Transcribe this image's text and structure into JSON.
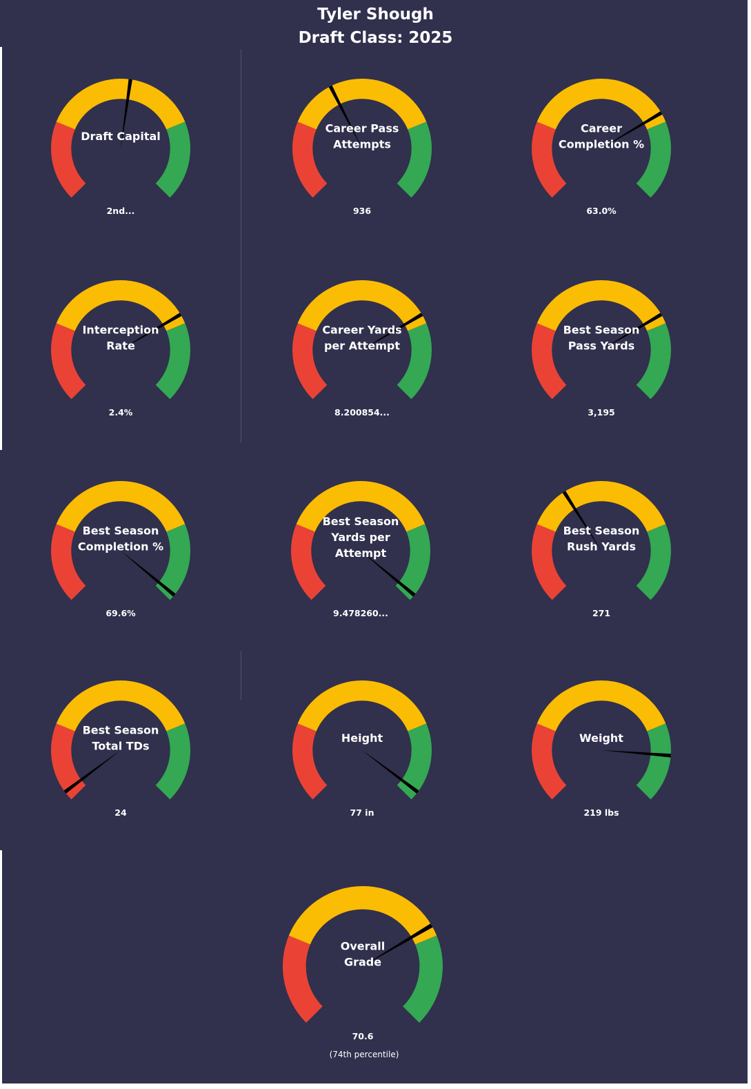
{
  "header": {
    "player": "Tyler Shough",
    "draft_class": "Draft Class: 2025"
  },
  "colors": {
    "background": "#31304d",
    "red": "#ea4335",
    "yellow": "#fbbc04",
    "green": "#34a853",
    "needle": "#000000",
    "text": "#ffffff"
  },
  "chart_data": [
    {
      "type": "gauge",
      "label": [
        "Draft Capital"
      ],
      "value_text": "2nd...",
      "needle_pct": 0.53,
      "bands": [
        0.25,
        0.75
      ]
    },
    {
      "type": "gauge",
      "label": [
        "Career Pass",
        "Attempts"
      ],
      "value_text": "936",
      "needle_pct": 0.4,
      "bands": [
        0.25,
        0.75
      ]
    },
    {
      "type": "gauge",
      "label": [
        "Career",
        "Completion %"
      ],
      "value_text": "63.0%",
      "needle_pct": 0.72,
      "bands": [
        0.25,
        0.75
      ]
    },
    {
      "type": "gauge",
      "label": [
        "Interception",
        "Rate"
      ],
      "value_text": "2.4%",
      "needle_pct": 0.72,
      "bands": [
        0.25,
        0.75
      ]
    },
    {
      "type": "gauge",
      "label": [
        "Career Yards",
        "per Attempt"
      ],
      "value_text": "8.200854...",
      "needle_pct": 0.72,
      "bands": [
        0.25,
        0.75
      ]
    },
    {
      "type": "gauge",
      "label": [
        "Best Season",
        "Pass Yards"
      ],
      "value_text": "3,195",
      "needle_pct": 0.72,
      "bands": [
        0.25,
        0.75
      ]
    },
    {
      "type": "gauge",
      "label": [
        "Best Season",
        "Completion %"
      ],
      "value_text": "69.6%",
      "needle_pct": 0.98,
      "bands": [
        0.25,
        0.75
      ]
    },
    {
      "type": "gauge",
      "label": [
        "Best Season",
        "Yards per",
        "Attempt"
      ],
      "value_text": "9.478260...",
      "needle_pct": 0.98,
      "bands": [
        0.25,
        0.75
      ]
    },
    {
      "type": "gauge",
      "label": [
        "Best Season",
        "Rush Yards"
      ],
      "value_text": "271",
      "needle_pct": 0.38,
      "bands": [
        0.25,
        0.75
      ]
    },
    {
      "type": "gauge",
      "label": [
        "Best Season",
        "Total TDs"
      ],
      "value_text": "24",
      "needle_pct": 0.03,
      "bands": [
        0.25,
        0.75
      ]
    },
    {
      "type": "gauge",
      "label": [
        "Height"
      ],
      "value_text": "77 in",
      "needle_pct": 0.97,
      "bands": [
        0.25,
        0.75
      ]
    },
    {
      "type": "gauge",
      "label": [
        "Weight"
      ],
      "value_text": "219 lbs",
      "needle_pct": 0.85,
      "bands": [
        0.25,
        0.75
      ]
    },
    {
      "type": "gauge",
      "label": [
        "Overall",
        "Grade"
      ],
      "value_text": "70.6",
      "sub_text": "(74th  percentile)",
      "needle_pct": 0.72,
      "bands": [
        0.25,
        0.75
      ]
    }
  ]
}
